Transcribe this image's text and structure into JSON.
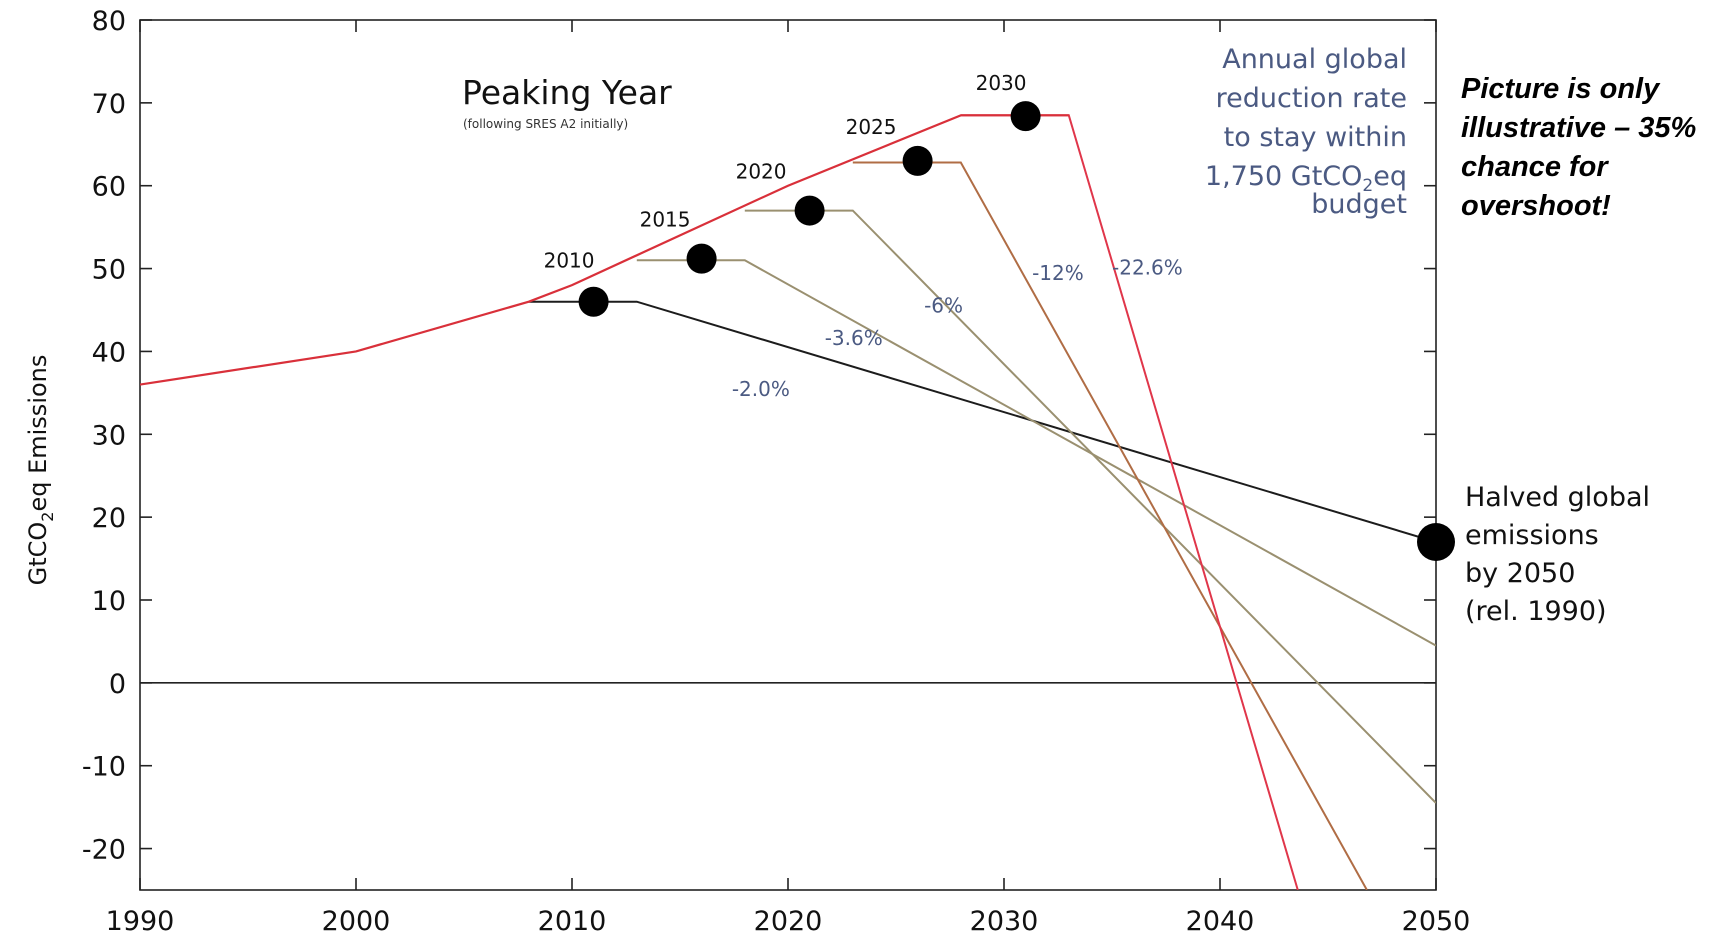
{
  "chart_data": {
    "type": "line",
    "title": "Peaking Year",
    "subtitle": "(following SRES A2 initially)",
    "ylabel": "GtCO",
    "ylabel_sub": "2",
    "ylabel_rest": "eq Emissions",
    "xlabel": "",
    "xlim": [
      1990,
      2050
    ],
    "ylim": [
      -25,
      80
    ],
    "x_ticks": [
      1990,
      2000,
      2010,
      2020,
      2030,
      2040,
      2050
    ],
    "y_ticks": [
      80,
      70,
      60,
      50,
      40,
      30,
      20,
      10,
      0,
      -10,
      -20
    ],
    "grid": false,
    "colors": {
      "baseline": "#d9303a",
      "pathway_2010": "#1c1c1c",
      "pathway_2015": "#9a9070",
      "pathway_2020": "#9a9070",
      "pathway_2025": "#b06d45",
      "pathway_2030": "#e0364a",
      "axis": "#222222",
      "rate_text": "#4b5a82"
    },
    "baseline": {
      "x": [
        1990,
        2000,
        2008,
        2010,
        2015,
        2020,
        2028,
        2033
      ],
      "y": [
        36,
        40,
        46,
        48,
        54,
        60,
        68.5,
        68.5
      ]
    },
    "series": [
      {
        "peak_label": "2010",
        "rate_label": "-2.0%",
        "x": [
          2008,
          2013,
          2050
        ],
        "y": [
          46,
          46,
          17
        ],
        "marker": [
          2011,
          46
        ]
      },
      {
        "peak_label": "2015",
        "rate_label": "-3.6%",
        "x": [
          2013,
          2018,
          2050
        ],
        "y": [
          51,
          51,
          4.5
        ],
        "marker": [
          2016,
          51.2
        ]
      },
      {
        "peak_label": "2020",
        "rate_label": "-6%",
        "x": [
          2018,
          2023,
          2050
        ],
        "y": [
          57,
          57,
          -14.5
        ],
        "marker": [
          2021,
          57
        ]
      },
      {
        "peak_label": "2025",
        "rate_label": "-12%",
        "x": [
          2023,
          2028,
          2046.8
        ],
        "y": [
          62.8,
          62.8,
          -25
        ],
        "marker": [
          2026,
          63
        ]
      },
      {
        "peak_label": "2030",
        "rate_label": "-22.6%",
        "x": [
          2028,
          2033,
          2043.6
        ],
        "y": [
          68.5,
          68.5,
          -25
        ],
        "marker": [
          2031,
          68.4
        ]
      }
    ],
    "endpoint_marker": [
      2050,
      17
    ],
    "annotations": {
      "budget_lines": [
        "Annual global",
        "reduction rate",
        "to stay within"
      ],
      "budget_line4_pre": "1,750 GtCO",
      "budget_line4_sub": "2",
      "budget_line4_post": "eq",
      "budget_line5": "budget",
      "halved_lines": [
        "Halved global",
        "emissions",
        "by 2050",
        "(rel. 1990)"
      ],
      "note_lines": [
        "Picture is only",
        "illustrative – 35%",
        "chance for",
        "overshoot!"
      ]
    }
  }
}
